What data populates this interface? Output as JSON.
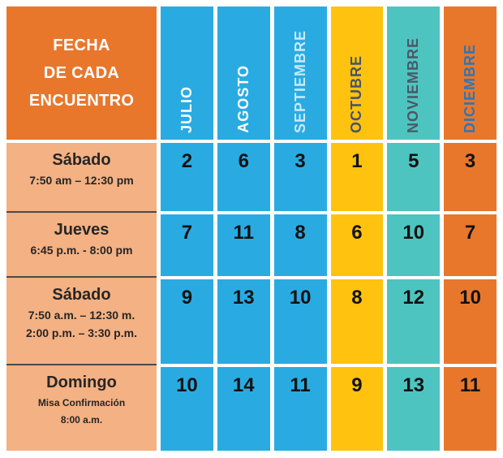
{
  "page": {
    "background": "#FFFFFF"
  },
  "table": {
    "corner": {
      "lines": [
        "FECHA",
        "DE CADA",
        "ENCUENTRO"
      ],
      "bg": "#E8772C",
      "text_color": "#FFFFFF"
    },
    "label_column_bg": "#F4B183",
    "label_text_color": "#262626",
    "number_color": "#121212",
    "months": [
      {
        "label": "JULIO",
        "bg": "#29ABE2",
        "text_color": "#FFFFFF"
      },
      {
        "label": "AGOSTO",
        "bg": "#29ABE2",
        "text_color": "#FFFFFF"
      },
      {
        "label": "SEPTIEMBRE",
        "bg": "#29ABE2",
        "text_color": "#C8E9F8"
      },
      {
        "label": "OCTUBRE",
        "bg": "#FFC20E",
        "text_color": "#44546A"
      },
      {
        "label": "NOVIEMBRE",
        "bg": "#4EC4C0",
        "text_color": "#4A5866"
      },
      {
        "label": "DICIEMBRE",
        "bg": "#E8772C",
        "text_color": "#2E75B6"
      }
    ],
    "rows": [
      {
        "title": "Sábado",
        "subtitle_lines": [
          "7:50 am – 12:30 pm"
        ],
        "values": [
          "2",
          "6",
          "3",
          "1",
          "5",
          "3"
        ]
      },
      {
        "title": "Jueves",
        "subtitle_lines": [
          "6:45 p.m. - 8:00 pm"
        ],
        "values": [
          "7",
          "11",
          "8",
          "6",
          "10",
          "7"
        ]
      },
      {
        "title": "Sábado",
        "subtitle_lines": [
          "7:50 a.m. – 12:30 m.",
          "2:00 p.m. – 3:30 p.m."
        ],
        "values": [
          "9",
          "13",
          "10",
          "8",
          "12",
          "10"
        ]
      },
      {
        "title": "Domingo",
        "subtitle_lines": [
          "Misa Confirmación",
          "8:00 a.m."
        ],
        "values": [
          "10",
          "14",
          "11",
          "9",
          "13",
          "11"
        ]
      }
    ]
  }
}
